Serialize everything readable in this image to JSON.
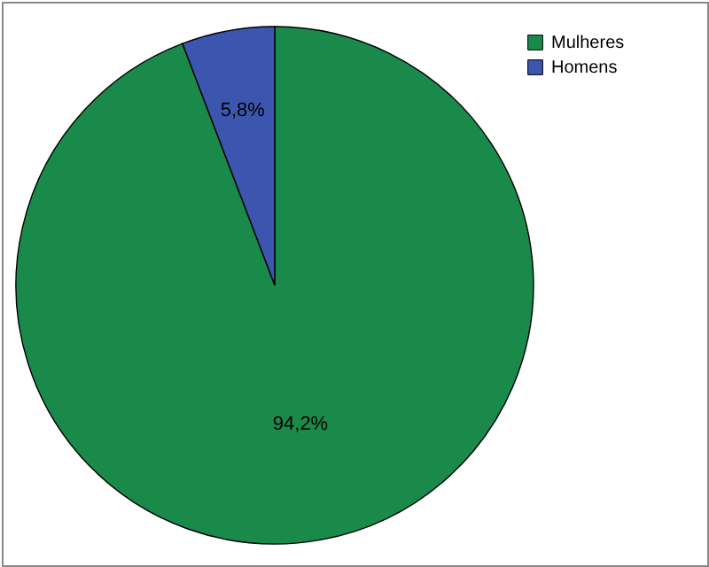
{
  "chart_data": {
    "type": "pie",
    "categories": [
      "Mulheres",
      "Homens"
    ],
    "values": [
      94.2,
      5.8
    ],
    "colors": [
      "#1a8a4a",
      "#3c55ae"
    ],
    "value_labels": [
      "94,2%",
      "5,8%"
    ],
    "legend": "top right"
  }
}
